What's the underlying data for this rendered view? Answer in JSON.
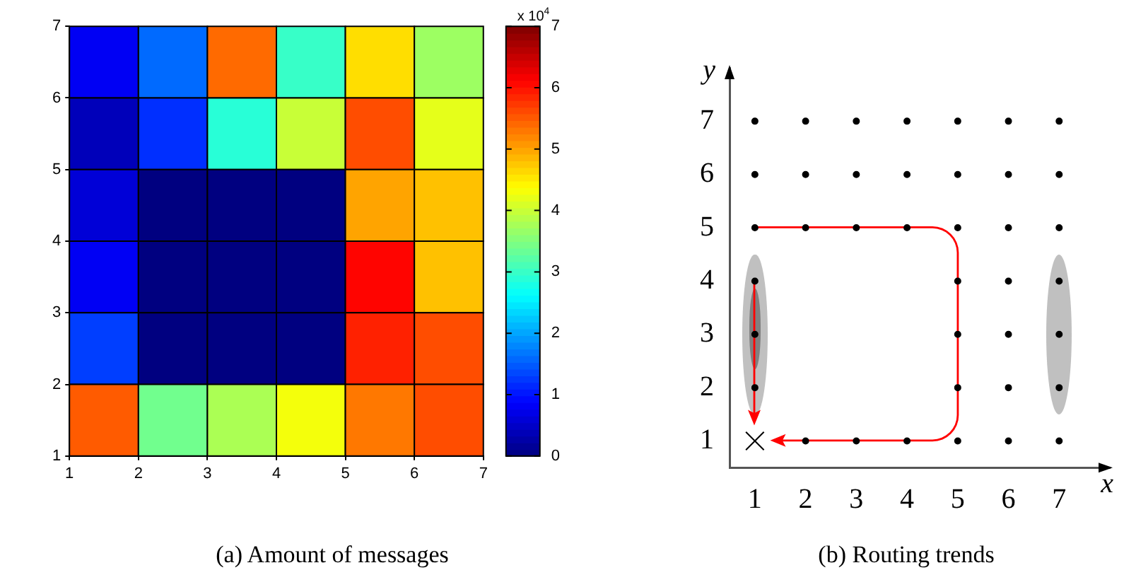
{
  "chart_data": [
    {
      "type": "heatmap",
      "title": "(a) Amount of messages",
      "xlim": [
        1,
        7
      ],
      "ylim": [
        1,
        7
      ],
      "xticks": [
        1,
        2,
        3,
        4,
        5,
        6,
        7
      ],
      "yticks": [
        1,
        2,
        3,
        4,
        5,
        6,
        7
      ],
      "cells": [
        [
          0.8,
          1.6,
          5.4,
          3.0,
          4.6,
          3.7
        ],
        [
          0.4,
          1.2,
          2.9,
          4.0,
          5.6,
          4.2
        ],
        [
          0.6,
          0,
          0,
          0,
          5.0,
          4.8
        ],
        [
          0.8,
          0,
          0,
          0,
          6.1,
          4.8
        ],
        [
          1.3,
          0,
          0,
          0,
          5.9,
          5.6
        ],
        [
          5.5,
          3.4,
          3.8,
          4.3,
          5.3,
          5.6
        ]
      ],
      "clim": [
        0,
        7
      ],
      "cticks": [
        0,
        1,
        2,
        3,
        4,
        5,
        6,
        7
      ],
      "annotations": [
        "x 10$^{4}$"
      ]
    },
    {
      "type": "scatter",
      "title": "(b) Routing trends",
      "xlabel": "x",
      "ylabel": "y",
      "xlim": [
        0.5,
        8
      ],
      "ylim": [
        0.5,
        8
      ],
      "xticks": [
        1,
        2,
        3,
        4,
        5,
        6,
        7
      ],
      "yticks": [
        1,
        2,
        3,
        4,
        5,
        6,
        7
      ],
      "series": [
        {
          "type": "scatter",
          "marker": "circle",
          "color": "#000000",
          "x": [
            2,
            3,
            4,
            5,
            6,
            7,
            1,
            5,
            6,
            7,
            1,
            5,
            6,
            7,
            1,
            5,
            6,
            7,
            1,
            2,
            3,
            4,
            5,
            6,
            7,
            1,
            2,
            3,
            4,
            5,
            6,
            7,
            1,
            2,
            3,
            4,
            5,
            6,
            7
          ],
          "values": [
            1,
            1,
            1,
            1,
            1,
            1,
            2,
            2,
            2,
            2,
            3,
            3,
            3,
            3,
            4,
            4,
            4,
            4,
            5,
            5,
            5,
            5,
            5,
            5,
            5,
            6,
            6,
            6,
            6,
            6,
            6,
            6,
            7,
            7,
            7,
            7,
            7,
            7,
            7
          ]
        },
        {
          "type": "scatter",
          "marker": "cross",
          "color": "#000000",
          "x": [
            1
          ],
          "values": [
            1
          ]
        }
      ]
    }
  ]
}
